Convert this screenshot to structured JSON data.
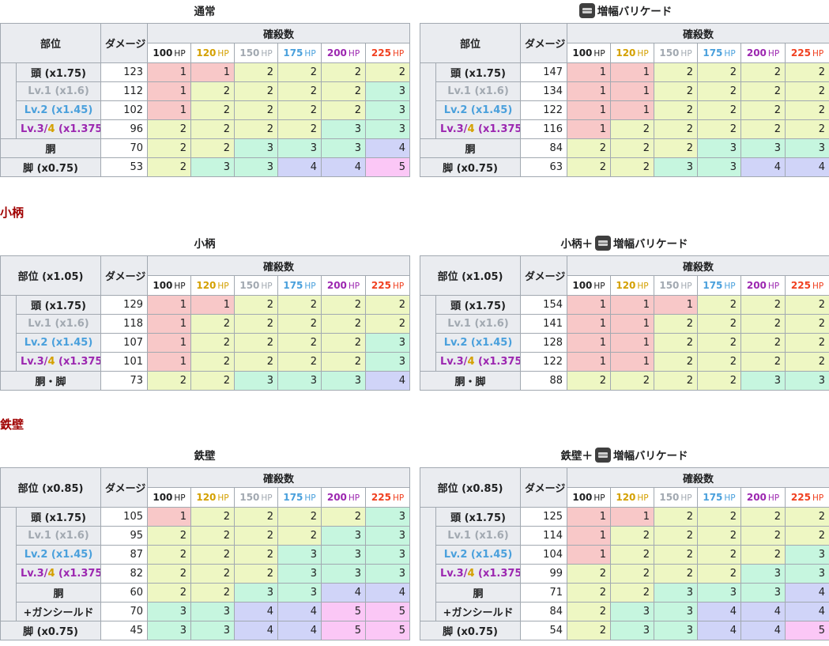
{
  "headers": {
    "part": "部位",
    "damage": "ダメージ",
    "kill": "確殺数"
  },
  "hp_unit": "HP",
  "hp_levels": [
    {
      "value": "100",
      "color": "#202122"
    },
    {
      "value": "120",
      "color": "#d4a000"
    },
    {
      "value": "150",
      "color": "#a2a9b1"
    },
    {
      "value": "175",
      "color": "#4aa0dc"
    },
    {
      "value": "200",
      "color": "#9c27b0"
    },
    {
      "value": "225",
      "color": "#f04020"
    }
  ],
  "sections": [
    {
      "heading": "",
      "tables": [
        {
          "caption_pre": "",
          "caption_text": "通常",
          "icon": false,
          "part_header": "部位",
          "rows": [
            {
              "kind": "main",
              "label": "頭 (x1.75)",
              "damage": "123",
              "kills": [
                1,
                1,
                2,
                2,
                2,
                2
              ]
            },
            {
              "kind": "lv1",
              "label": "Lv.1 (x1.6)",
              "damage": "112",
              "kills": [
                1,
                2,
                2,
                2,
                2,
                3
              ]
            },
            {
              "kind": "lv2",
              "label": "Lv.2 (x1.45)",
              "damage": "102",
              "kills": [
                1,
                2,
                2,
                2,
                2,
                3
              ]
            },
            {
              "kind": "lv3",
              "label_a": "Lv.3/",
              "label_b": "4",
              "label_c": " (x1.375)",
              "damage": "96",
              "kills": [
                2,
                2,
                2,
                2,
                3,
                3
              ]
            },
            {
              "kind": "main",
              "label": "胴",
              "damage": "70",
              "kills": [
                2,
                2,
                3,
                3,
                3,
                4
              ]
            },
            {
              "kind": "main",
              "label": "脚 (x0.75)",
              "damage": "53",
              "kills": [
                2,
                3,
                3,
                4,
                4,
                5
              ]
            }
          ]
        },
        {
          "caption_pre": "",
          "caption_text": "増幅バリケード",
          "icon": true,
          "part_header": "部位",
          "rows": [
            {
              "kind": "main",
              "label": "頭 (x1.75)",
              "damage": "147",
              "kills": [
                1,
                1,
                2,
                2,
                2,
                2
              ]
            },
            {
              "kind": "lv1",
              "label": "Lv.1 (x1.6)",
              "damage": "134",
              "kills": [
                1,
                1,
                2,
                2,
                2,
                2
              ]
            },
            {
              "kind": "lv2",
              "label": "Lv.2 (x1.45)",
              "damage": "122",
              "kills": [
                1,
                1,
                2,
                2,
                2,
                2
              ]
            },
            {
              "kind": "lv3",
              "label_a": "Lv.3/",
              "label_b": "4",
              "label_c": " (x1.375)",
              "damage": "116",
              "kills": [
                1,
                2,
                2,
                2,
                2,
                2
              ]
            },
            {
              "kind": "main",
              "label": "胴",
              "damage": "84",
              "kills": [
                2,
                2,
                2,
                3,
                3,
                3
              ]
            },
            {
              "kind": "main",
              "label": "脚 (x0.75)",
              "damage": "63",
              "kills": [
                2,
                2,
                3,
                3,
                4,
                4
              ]
            }
          ]
        }
      ]
    },
    {
      "heading": "小柄",
      "tables": [
        {
          "caption_pre": "",
          "caption_text": "小柄",
          "icon": false,
          "part_header": "部位 (x1.05)",
          "rows": [
            {
              "kind": "main",
              "label": "頭 (x1.75)",
              "damage": "129",
              "kills": [
                1,
                1,
                2,
                2,
                2,
                2
              ]
            },
            {
              "kind": "lv1",
              "label": "Lv.1 (x1.6)",
              "damage": "118",
              "kills": [
                1,
                2,
                2,
                2,
                2,
                2
              ]
            },
            {
              "kind": "lv2",
              "label": "Lv.2 (x1.45)",
              "damage": "107",
              "kills": [
                1,
                2,
                2,
                2,
                2,
                3
              ]
            },
            {
              "kind": "lv3",
              "label_a": "Lv.3/",
              "label_b": "4",
              "label_c": " (x1.375)",
              "damage": "101",
              "kills": [
                1,
                2,
                2,
                2,
                2,
                3
              ]
            },
            {
              "kind": "main",
              "label": "胴・脚",
              "damage": "73",
              "kills": [
                2,
                2,
                3,
                3,
                3,
                4
              ]
            }
          ]
        },
        {
          "caption_pre": "小柄＋",
          "caption_text": "増幅バリケード",
          "icon": true,
          "part_header": "部位 (x1.05)",
          "rows": [
            {
              "kind": "main",
              "label": "頭 (x1.75)",
              "damage": "154",
              "kills": [
                1,
                1,
                1,
                2,
                2,
                2
              ]
            },
            {
              "kind": "lv1",
              "label": "Lv.1 (x1.6)",
              "damage": "141",
              "kills": [
                1,
                1,
                2,
                2,
                2,
                2
              ]
            },
            {
              "kind": "lv2",
              "label": "Lv.2 (x1.45)",
              "damage": "128",
              "kills": [
                1,
                1,
                2,
                2,
                2,
                2
              ]
            },
            {
              "kind": "lv3",
              "label_a": "Lv.3/",
              "label_b": "4",
              "label_c": " (x1.375)",
              "damage": "122",
              "kills": [
                1,
                1,
                2,
                2,
                2,
                2
              ]
            },
            {
              "kind": "main",
              "label": "胴・脚",
              "damage": "88",
              "kills": [
                2,
                2,
                2,
                2,
                3,
                3
              ]
            }
          ]
        }
      ]
    },
    {
      "heading": "鉄壁",
      "tables": [
        {
          "caption_pre": "",
          "caption_text": "鉄壁",
          "icon": false,
          "part_header": "部位 (x0.85)",
          "rows": [
            {
              "kind": "main",
              "label": "頭 (x1.75)",
              "damage": "105",
              "kills": [
                1,
                2,
                2,
                2,
                2,
                3
              ]
            },
            {
              "kind": "lv1",
              "label": "Lv.1 (x1.6)",
              "damage": "95",
              "kills": [
                2,
                2,
                2,
                2,
                3,
                3
              ]
            },
            {
              "kind": "lv2",
              "label": "Lv.2 (x1.45)",
              "damage": "87",
              "kills": [
                2,
                2,
                2,
                3,
                3,
                3
              ]
            },
            {
              "kind": "lv3",
              "label_a": "Lv.3/",
              "label_b": "4",
              "label_c": " (x1.375)",
              "damage": "82",
              "kills": [
                2,
                2,
                2,
                3,
                3,
                3
              ]
            },
            {
              "kind": "main",
              "label": "胴",
              "damage": "60",
              "kills": [
                2,
                2,
                3,
                3,
                4,
                4
              ]
            },
            {
              "kind": "sub",
              "label": "+ガンシールド",
              "damage": "70",
              "kills": [
                3,
                3,
                4,
                4,
                5,
                5
              ]
            },
            {
              "kind": "main",
              "label": "脚 (x0.75)",
              "damage": "45",
              "kills": [
                3,
                3,
                4,
                4,
                5,
                5
              ]
            }
          ]
        },
        {
          "caption_pre": "鉄壁＋",
          "caption_text": "増幅バリケード",
          "icon": true,
          "part_header": "部位 (x0.85)",
          "rows": [
            {
              "kind": "main",
              "label": "頭 (x1.75)",
              "damage": "125",
              "kills": [
                1,
                1,
                2,
                2,
                2,
                2
              ]
            },
            {
              "kind": "lv1",
              "label": "Lv.1 (x1.6)",
              "damage": "114",
              "kills": [
                1,
                2,
                2,
                2,
                2,
                2
              ]
            },
            {
              "kind": "lv2",
              "label": "Lv.2 (x1.45)",
              "damage": "104",
              "kills": [
                1,
                2,
                2,
                2,
                2,
                3
              ]
            },
            {
              "kind": "lv3",
              "label_a": "Lv.3/",
              "label_b": "4",
              "label_c": " (x1.375)",
              "damage": "99",
              "kills": [
                2,
                2,
                2,
                2,
                3,
                3
              ]
            },
            {
              "kind": "main",
              "label": "胴",
              "damage": "71",
              "kills": [
                2,
                2,
                3,
                3,
                3,
                4
              ]
            },
            {
              "kind": "sub",
              "label": "+ガンシールド",
              "damage": "84",
              "kills": [
                2,
                3,
                3,
                4,
                4,
                4
              ]
            },
            {
              "kind": "main",
              "label": "脚 (x0.75)",
              "damage": "54",
              "kills": [
                2,
                3,
                3,
                4,
                4,
                5
              ]
            }
          ]
        }
      ]
    }
  ]
}
